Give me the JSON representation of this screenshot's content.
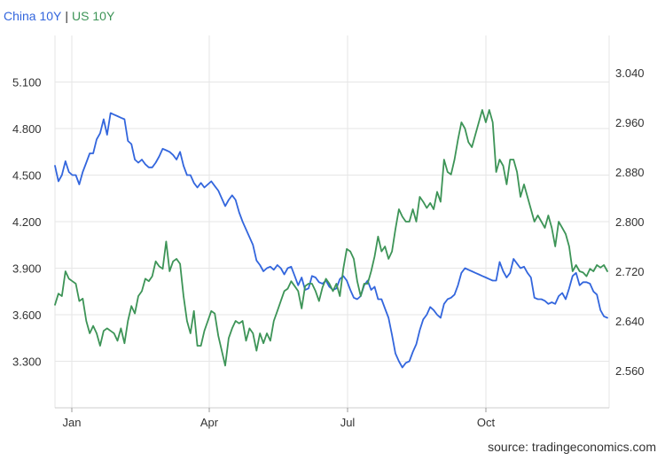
{
  "legend": {
    "separator": "|"
  },
  "source": "source: tradingeconomics.com",
  "chart_data": {
    "type": "line",
    "title": "",
    "xlabel": "",
    "grid": true,
    "x_ticks": [
      "Jan",
      "Apr",
      "Jul",
      "Oct"
    ],
    "y_left_ticks": [
      "3.300",
      "3.600",
      "3.900",
      "4.200",
      "4.500",
      "4.800",
      "5.100"
    ],
    "y_right_ticks": [
      "2.560",
      "2.640",
      "2.720",
      "2.800",
      "2.880",
      "2.960",
      "3.040"
    ],
    "y_left_range": [
      3.0,
      5.4
    ],
    "y_right_range": [
      2.5,
      3.1
    ],
    "series": [
      {
        "name": "China 10Y",
        "axis": "left",
        "color": "#3366dd",
        "values": [
          4.56,
          4.46,
          4.5,
          4.59,
          4.52,
          4.5,
          4.5,
          4.44,
          4.52,
          4.58,
          4.64,
          4.64,
          4.73,
          4.77,
          4.86,
          4.76,
          4.9,
          4.89,
          4.88,
          4.87,
          4.86,
          4.72,
          4.7,
          4.6,
          4.58,
          4.6,
          4.57,
          4.55,
          4.55,
          4.58,
          4.62,
          4.67,
          4.66,
          4.65,
          4.63,
          4.6,
          4.65,
          4.56,
          4.5,
          4.5,
          4.45,
          4.42,
          4.45,
          4.42,
          4.44,
          4.46,
          4.43,
          4.4,
          4.35,
          4.3,
          4.34,
          4.37,
          4.34,
          4.26,
          4.2,
          4.15,
          4.1,
          4.05,
          3.95,
          3.92,
          3.88,
          3.9,
          3.91,
          3.89,
          3.92,
          3.9,
          3.86,
          3.9,
          3.91,
          3.85,
          3.79,
          3.84,
          3.76,
          3.77,
          3.85,
          3.84,
          3.81,
          3.8,
          3.82,
          3.78,
          3.76,
          3.77,
          3.83,
          3.85,
          3.82,
          3.76,
          3.71,
          3.7,
          3.72,
          3.79,
          3.82,
          3.76,
          3.78,
          3.7,
          3.7,
          3.64,
          3.58,
          3.47,
          3.35,
          3.3,
          3.26,
          3.29,
          3.3,
          3.36,
          3.41,
          3.5,
          3.57,
          3.6,
          3.65,
          3.63,
          3.6,
          3.58,
          3.67,
          3.7,
          3.71,
          3.73,
          3.79,
          3.87,
          3.9,
          3.89,
          3.88,
          3.87,
          3.86,
          3.85,
          3.84,
          3.83,
          3.82,
          3.82,
          3.94,
          3.88,
          3.84,
          3.87,
          3.96,
          3.93,
          3.9,
          3.91,
          3.87,
          3.84,
          3.71,
          3.7,
          3.7,
          3.69,
          3.67,
          3.68,
          3.67,
          3.72,
          3.74,
          3.7,
          3.77,
          3.85,
          3.87,
          3.79,
          3.81,
          3.81,
          3.8,
          3.75,
          3.73,
          3.63,
          3.59,
          3.58
        ]
      },
      {
        "name": "US 10Y",
        "axis": "right",
        "color": "#3d9457",
        "values": [
          2.666,
          2.684,
          2.68,
          2.72,
          2.708,
          2.704,
          2.7,
          2.672,
          2.676,
          2.64,
          2.62,
          2.632,
          2.62,
          2.6,
          2.624,
          2.628,
          2.624,
          2.62,
          2.608,
          2.628,
          2.604,
          2.64,
          2.664,
          2.652,
          2.68,
          2.688,
          2.708,
          2.704,
          2.712,
          2.736,
          2.728,
          2.724,
          2.768,
          2.72,
          2.736,
          2.74,
          2.732,
          2.68,
          2.64,
          2.62,
          2.656,
          2.6,
          2.6,
          2.624,
          2.64,
          2.656,
          2.652,
          2.616,
          2.592,
          2.568,
          2.612,
          2.628,
          2.64,
          2.636,
          2.64,
          2.608,
          2.628,
          2.62,
          2.592,
          2.62,
          2.604,
          2.62,
          2.608,
          2.64,
          2.656,
          2.672,
          2.688,
          2.692,
          2.704,
          2.696,
          2.688,
          2.66,
          2.696,
          2.7,
          2.7,
          2.688,
          2.672,
          2.694,
          2.708,
          2.7,
          2.688,
          2.7,
          2.68,
          2.724,
          2.756,
          2.752,
          2.74,
          2.704,
          2.68,
          2.7,
          2.7,
          2.72,
          2.744,
          2.776,
          2.752,
          2.76,
          2.74,
          2.752,
          2.788,
          2.82,
          2.808,
          2.8,
          2.8,
          2.82,
          2.8,
          2.84,
          2.832,
          2.822,
          2.83,
          2.82,
          2.848,
          2.832,
          2.9,
          2.88,
          2.876,
          2.9,
          2.932,
          2.96,
          2.95,
          2.928,
          2.92,
          2.94,
          2.96,
          2.98,
          2.96,
          2.98,
          2.96,
          2.88,
          2.9,
          2.89,
          2.86,
          2.9,
          2.9,
          2.88,
          2.84,
          2.86,
          2.84,
          2.82,
          2.8,
          2.81,
          2.8,
          2.79,
          2.81,
          2.79,
          2.76,
          2.8,
          2.79,
          2.78,
          2.76,
          2.72,
          2.73,
          2.72,
          2.718,
          2.712,
          2.724,
          2.72,
          2.73,
          2.726,
          2.73,
          2.72
        ]
      }
    ]
  }
}
